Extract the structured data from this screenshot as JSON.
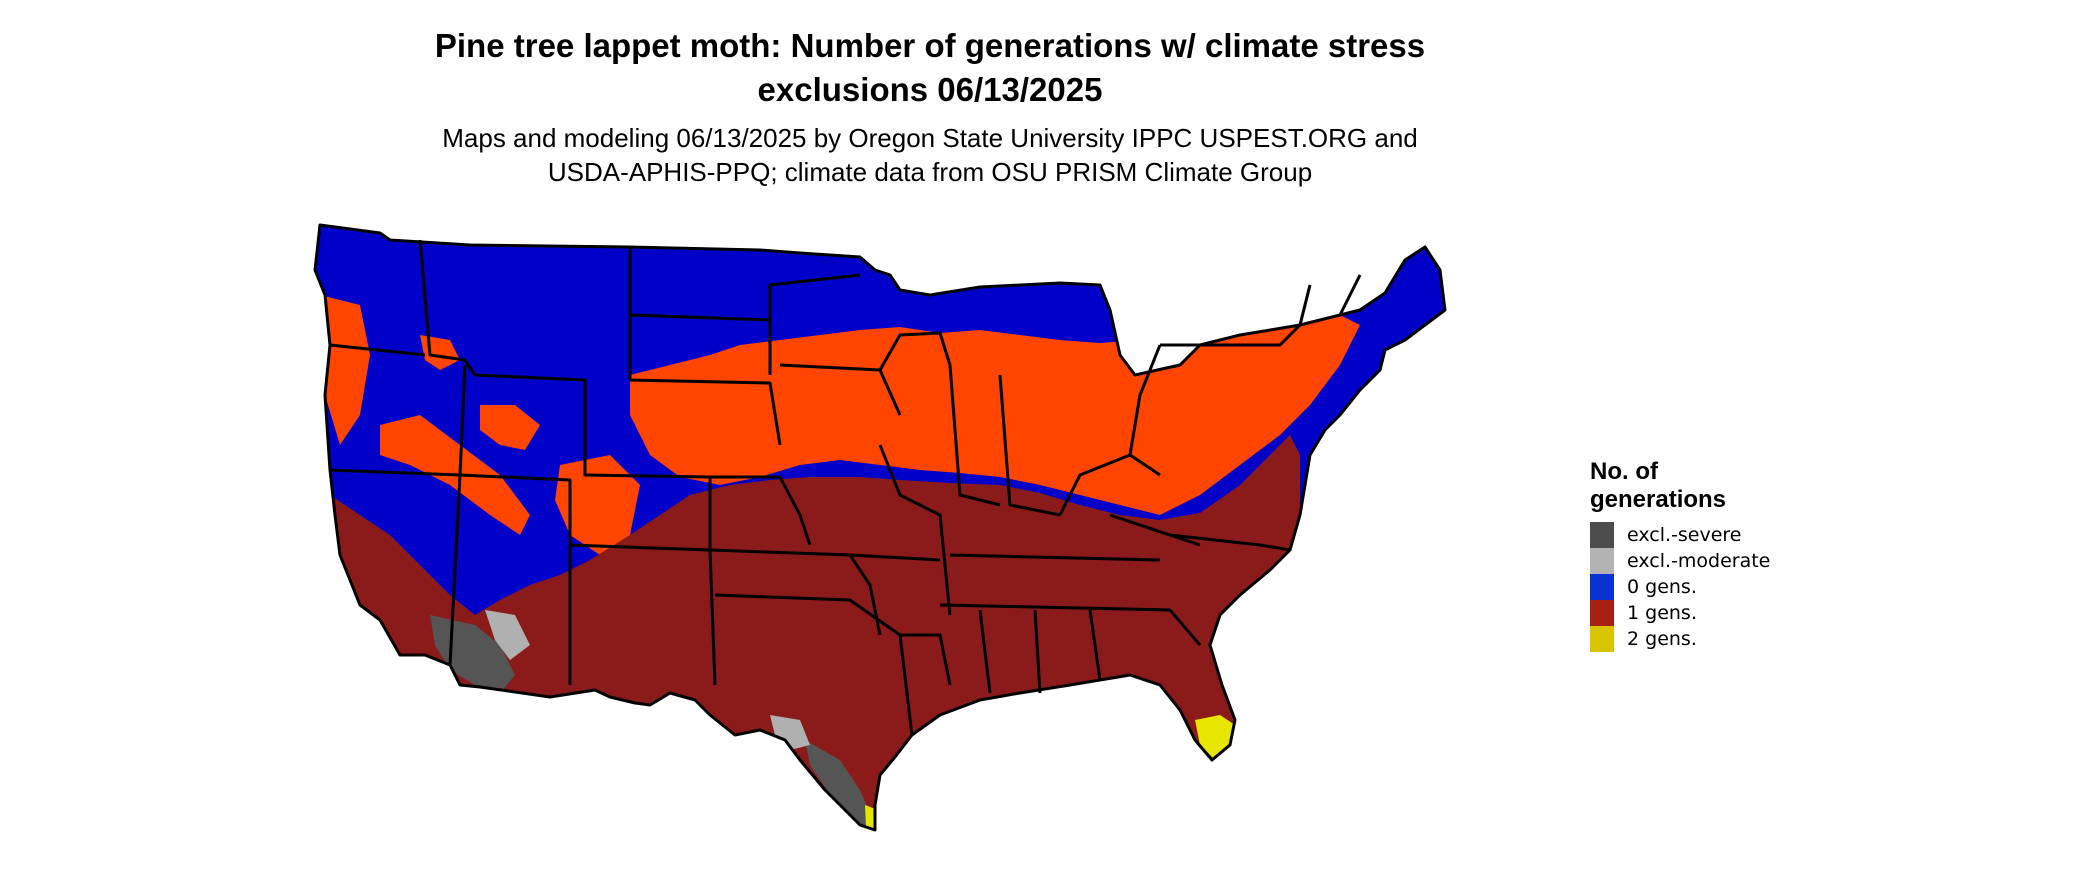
{
  "map": {
    "title_line1": "Pine tree lappet moth: Number of generations w/ climate stress",
    "title_line2": "exclusions 06/13/2025",
    "subtitle_line1": "Maps and modeling 06/13/2025 by Oregon State University IPPC USPEST.ORG and",
    "subtitle_line2": "USDA-APHIS-PPQ; climate data from OSU PRISM Climate Group"
  },
  "legend": {
    "title_line1": "No. of",
    "title_line2": "generations",
    "items": [
      {
        "label": "excl.-severe",
        "color": "#4d4d4d"
      },
      {
        "label": "excl.-moderate",
        "color": "#b3b3b3"
      },
      {
        "label": "0 gens.",
        "color": "#0a32d2"
      },
      {
        "label": "1 gens.",
        "color": "#a62016"
      },
      {
        "label": "2 gens.",
        "color": "#d9c400"
      }
    ]
  },
  "colors": {
    "zero_gens_fill": "#0000c8",
    "one_gen_fill": "#8b1a1a",
    "partial_gen_fill": "#ff4500",
    "severe_fill": "#555555",
    "moderate_fill": "#b0b0b0",
    "two_gens_fill": "#e6e600",
    "border": "#000000"
  }
}
